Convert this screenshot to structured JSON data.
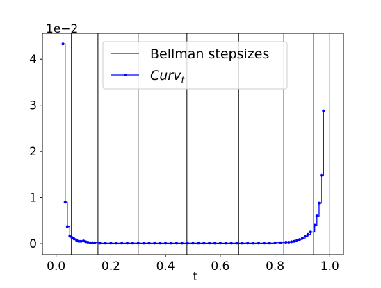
{
  "chart_data": {
    "type": "step",
    "xlabel": "t",
    "y_offset_text": "1e−2",
    "xlim": [
      -0.05,
      1.05
    ],
    "ylim": [
      -0.24,
      4.56
    ],
    "xticks": [
      {
        "value": 0,
        "label": "0.0"
      },
      0.2,
      0.4,
      0.6,
      0.8,
      {
        "value": 1,
        "label": "1.0"
      }
    ],
    "yticks": [
      0,
      1,
      2,
      3,
      4
    ],
    "legend": "upper center",
    "vlines": {
      "name": "Bellman stepsizes",
      "color": "#000000",
      "x": [
        0.056,
        0.153,
        0.3,
        0.478,
        0.667,
        0.832,
        0.941,
        1.0
      ]
    },
    "series": [
      {
        "name": "Curv",
        "subscript": "t",
        "color": "#0000ff",
        "x": [
          0.025,
          0.033,
          0.041,
          0.05,
          0.058,
          0.066,
          0.075,
          0.083,
          0.091,
          0.1,
          0.108,
          0.116,
          0.125,
          0.133,
          0.141,
          0.16,
          0.18,
          0.2,
          0.22,
          0.24,
          0.26,
          0.28,
          0.3,
          0.32,
          0.34,
          0.36,
          0.38,
          0.4,
          0.42,
          0.44,
          0.46,
          0.48,
          0.5,
          0.52,
          0.54,
          0.56,
          0.58,
          0.6,
          0.62,
          0.64,
          0.66,
          0.68,
          0.7,
          0.72,
          0.74,
          0.76,
          0.78,
          0.8,
          0.82,
          0.84,
          0.85,
          0.86,
          0.87,
          0.88,
          0.89,
          0.9,
          0.91,
          0.92,
          0.93,
          0.945,
          0.953,
          0.961,
          0.969,
          0.977
        ],
        "values": [
          4.33,
          0.9,
          0.37,
          0.16,
          0.13,
          0.1,
          0.07,
          0.05,
          0.05,
          0.06,
          0.04,
          0.03,
          0.02,
          0.02,
          0.02,
          0.01,
          0.01,
          0.01,
          0.01,
          0.01,
          0.01,
          0.01,
          0.01,
          0.01,
          0.01,
          0.01,
          0.01,
          0.01,
          0.01,
          0.01,
          0.01,
          0.01,
          0.01,
          0.01,
          0.01,
          0.01,
          0.01,
          0.01,
          0.01,
          0.01,
          0.01,
          0.01,
          0.01,
          0.01,
          0.01,
          0.01,
          0.01,
          0.02,
          0.02,
          0.03,
          0.03,
          0.04,
          0.05,
          0.07,
          0.09,
          0.12,
          0.16,
          0.2,
          0.25,
          0.4,
          0.6,
          0.88,
          1.48,
          2.88
        ]
      }
    ]
  }
}
